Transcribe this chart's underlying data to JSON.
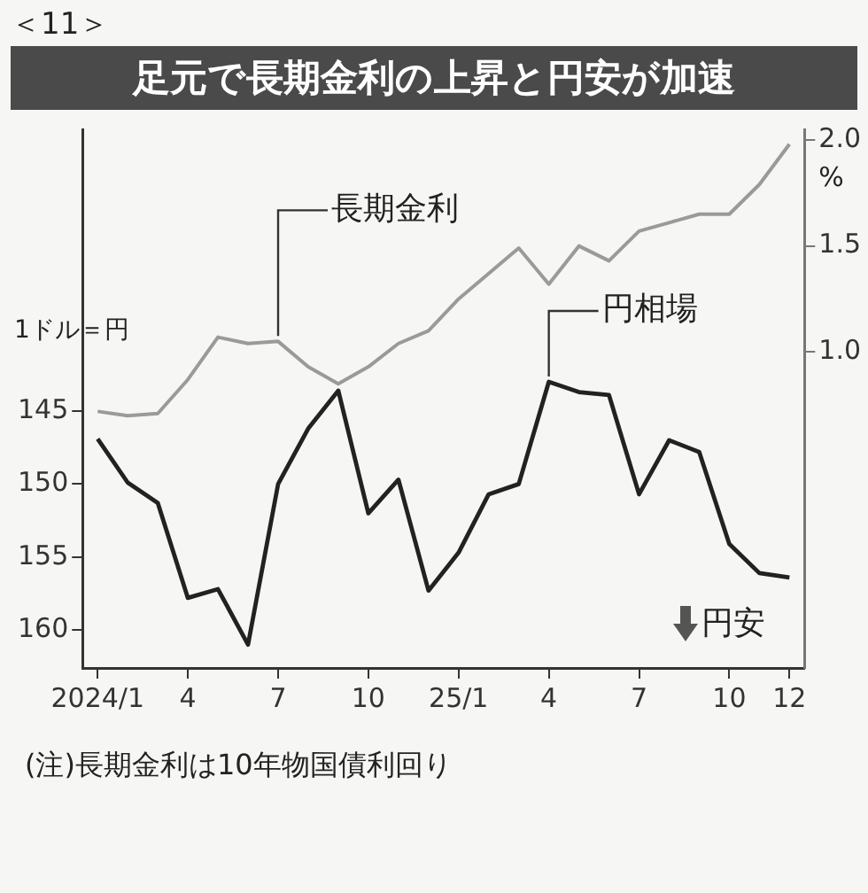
{
  "chart_data": {
    "type": "line",
    "title": "足元で長期金利の上昇と円安が加速",
    "ylabel": "1ドル＝円",
    "y2label": "%",
    "annotations": [
      "＜11＞",
      "円安",
      "(注)長期金利は10年物国債利回り"
    ],
    "categories": [
      "2024/1",
      null,
      null,
      "4",
      null,
      null,
      "7",
      null,
      null,
      "10",
      null,
      null,
      "25/1",
      null,
      null,
      "4",
      null,
      null,
      "7",
      null,
      null,
      "10",
      null,
      "12"
    ],
    "series": [
      {
        "name": "長期金利",
        "color": "#9a9a9a",
        "axis": "y2",
        "values": [
          0.72,
          0.7,
          0.71,
          0.87,
          1.07,
          1.04,
          1.05,
          0.93,
          0.85,
          0.93,
          1.04,
          1.1,
          1.25,
          1.37,
          1.49,
          1.32,
          1.5,
          1.43,
          1.57,
          1.61,
          1.65,
          1.65,
          1.79,
          1.98
        ]
      },
      {
        "name": "円相場",
        "color": "#222222",
        "axis": "y",
        "values": [
          146.9,
          149.9,
          151.3,
          157.8,
          157.2,
          161.0,
          150.0,
          146.2,
          143.6,
          152.0,
          149.7,
          157.3,
          154.7,
          150.7,
          150.0,
          143.0,
          143.7,
          143.9,
          150.7,
          147.0,
          147.8,
          154.1,
          156.1,
          156.4
        ]
      }
    ],
    "ylim": [
      162.6,
      125.7
    ],
    "yticks": [
      145,
      150,
      155,
      160
    ],
    "y2lim": [
      -0.49,
      2.05
    ],
    "y2ticks": [
      {
        "value": 1,
        "label": "1.0"
      },
      {
        "value": 1.5,
        "label": "1.5"
      },
      {
        "value": 2,
        "label": "2.0"
      }
    ],
    "grid": false,
    "legend": false,
    "marker": "none",
    "line_style": "solid"
  }
}
